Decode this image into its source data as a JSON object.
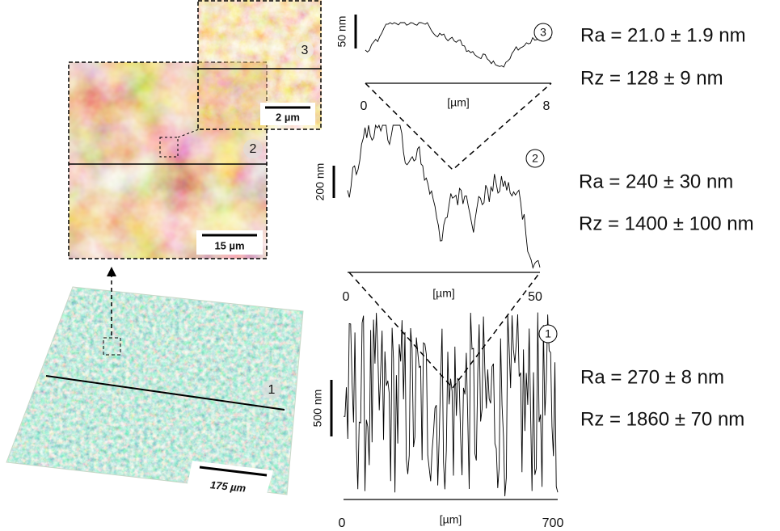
{
  "images": [
    {
      "label": "3",
      "scale_bar": "2 µm"
    },
    {
      "label": "2",
      "scale_bar": "15 µm"
    },
    {
      "label": "1",
      "scale_bar": "175 µm"
    }
  ],
  "profiles": [
    {
      "label": "3",
      "scale": "50 nm",
      "x_start": "0",
      "x_unit": "[µm]",
      "x_end": "8",
      "ra": "Ra = 21.0 ± 1.9 nm",
      "rz": "Rz = 128 ± 9 nm"
    },
    {
      "label": "2",
      "scale": "200 nm",
      "x_start": "0",
      "x_unit": "[µm]",
      "x_end": "50",
      "ra": "Ra = 240 ± 30 nm",
      "rz": "Rz = 1400 ± 100 nm"
    },
    {
      "label": "1",
      "scale": "500 nm",
      "x_start": "0",
      "x_unit": "[µm]",
      "x_end": "700",
      "ra": "Ra = 270 ± 8 nm",
      "rz": "Rz = 1860 ± 70 nm"
    }
  ]
}
